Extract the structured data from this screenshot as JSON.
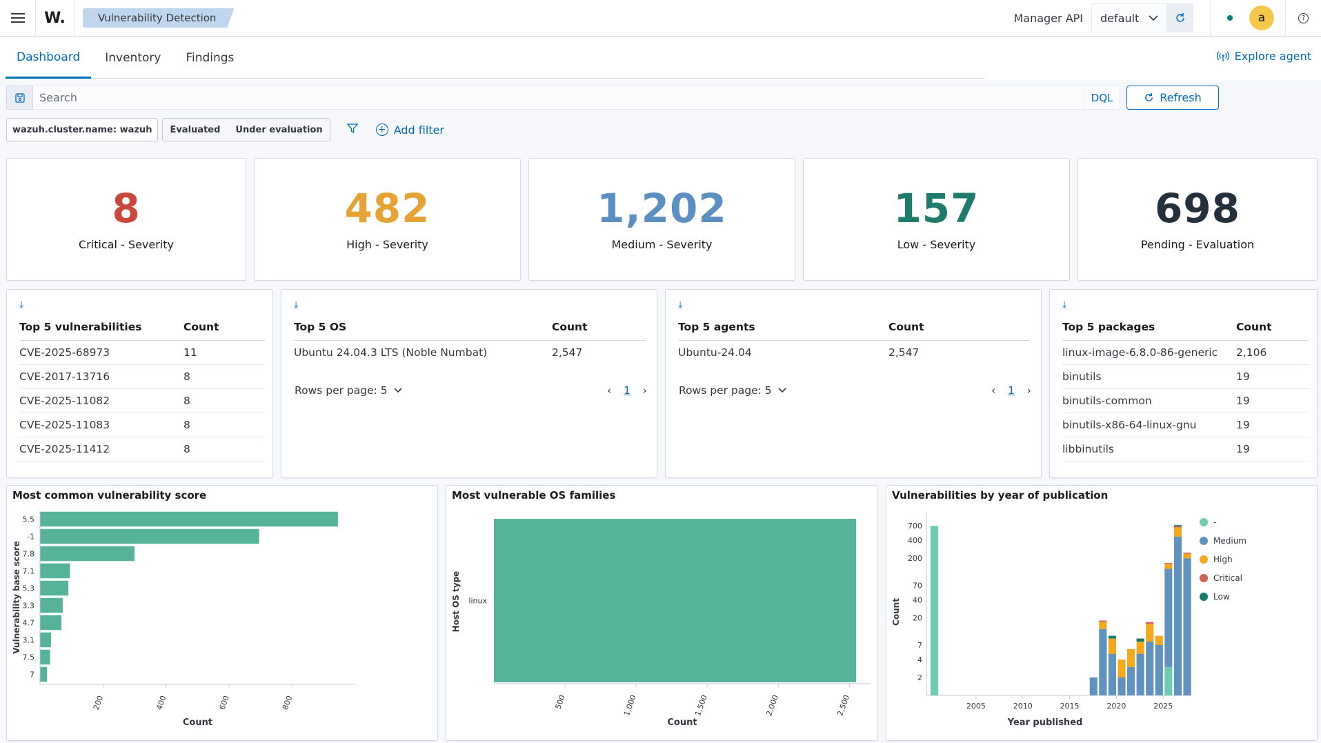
{
  "topbar": {
    "logo": "W.",
    "breadcrumb": "Vulnerability Detection",
    "manager_label": "Manager API",
    "manager_value": "default",
    "avatar_letter": "a",
    "help": "?"
  },
  "tabs": [
    {
      "label": "Dashboard",
      "active": true
    },
    {
      "label": "Inventory",
      "active": false
    },
    {
      "label": "Findings",
      "active": false
    }
  ],
  "explore_agent": "Explore agent",
  "search": {
    "placeholder": "Search",
    "dql": "DQL",
    "refresh": "Refresh"
  },
  "filters": {
    "pill": "wazuh.cluster.name: wazuh",
    "toggle_a": "Evaluated",
    "toggle_b": "Under evaluation",
    "add_filter": "Add filter"
  },
  "metrics": [
    {
      "value": "8",
      "label": "Critical - Severity",
      "color": "#c9473b"
    },
    {
      "value": "482",
      "label": "High - Severity",
      "color": "#e4a334"
    },
    {
      "value": "1,202",
      "label": "Medium - Severity",
      "color": "#5b8ec1"
    },
    {
      "value": "157",
      "label": "Low - Severity",
      "color": "#1f7c6c"
    },
    {
      "value": "698",
      "label": "Pending - Evaluation",
      "color": "#25303d"
    }
  ],
  "top_vulns": {
    "col1": "Top 5 vulnerabilities",
    "col2": "Count",
    "rows": [
      [
        "CVE-2025-68973",
        "11"
      ],
      [
        "CVE-2017-13716",
        "8"
      ],
      [
        "CVE-2025-11082",
        "8"
      ],
      [
        "CVE-2025-11083",
        "8"
      ],
      [
        "CVE-2025-11412",
        "8"
      ]
    ]
  },
  "top_os": {
    "col1": "Top 5 OS",
    "col2": "Count",
    "rows": [
      [
        "Ubuntu 24.04.3 LTS (Noble Numbat)",
        "2,547"
      ]
    ],
    "rows_per_page": "Rows per page: 5",
    "page": "1"
  },
  "top_agents": {
    "col1": "Top 5 agents",
    "col2": "Count",
    "rows": [
      [
        "Ubuntu-24.04",
        "2,547"
      ]
    ],
    "rows_per_page": "Rows per page: 5",
    "page": "1"
  },
  "top_packages": {
    "col1": "Top 5 packages",
    "col2": "Count",
    "rows": [
      [
        "linux-image-6.8.0-86-generic",
        "2,106"
      ],
      [
        "binutils",
        "19"
      ],
      [
        "binutils-common",
        "19"
      ],
      [
        "binutils-x86-64-linux-gnu",
        "19"
      ],
      [
        "libbinutils",
        "19"
      ]
    ]
  },
  "chart_titles": {
    "score": "Most common vulnerability score",
    "os": "Most vulnerable OS families",
    "year": "Vulnerabilities by year of publication"
  },
  "chart_data": [
    {
      "type": "bar",
      "orientation": "horizontal",
      "title": "Most common vulnerability score",
      "categories": [
        "5.5",
        "-1",
        "7.8",
        "7.1",
        "5.3",
        "3.3",
        "4.7",
        "3.1",
        "7.5",
        "7"
      ],
      "values": [
        945,
        695,
        300,
        95,
        90,
        72,
        68,
        35,
        32,
        22
      ],
      "xticks": [
        "200",
        "400",
        "600",
        "800"
      ],
      "xlabel": "Count",
      "ylabel": "Vulnerability base score",
      "color": "#54b399"
    },
    {
      "type": "bar",
      "orientation": "horizontal",
      "title": "Most vulnerable OS families",
      "categories": [
        "linux"
      ],
      "values": [
        2547
      ],
      "xticks": [
        "500",
        "1,000",
        "1,500",
        "2,000",
        "2,500"
      ],
      "xlabel": "Count",
      "ylabel": "Host OS type",
      "color": "#54b399"
    },
    {
      "type": "bar",
      "stacked": true,
      "scale": "log",
      "title": "Vulnerabilities by year of publication",
      "xlabel": "Year published",
      "ylabel": "Count",
      "xticks": [
        "2005",
        "2010",
        "2015",
        "2020",
        "2025"
      ],
      "yticks": [
        "2",
        "4",
        "7",
        "20",
        "40",
        "70",
        "200",
        "400",
        "700"
      ],
      "legend_position": "right",
      "series": [
        {
          "name": "-",
          "color": "#6dccb1"
        },
        {
          "name": "Medium",
          "color": "#6092c0"
        },
        {
          "name": "High",
          "color": "#f4a81b"
        },
        {
          "name": "Critical",
          "color": "#d36052"
        },
        {
          "name": "Low",
          "color": "#107b6d"
        }
      ],
      "bars": [
        {
          "year": 2000,
          "-": 700
        },
        {
          "year": 2017,
          "Medium": 2
        },
        {
          "year": 2018,
          "Medium": 13,
          "High": 4,
          "Critical": 1
        },
        {
          "year": 2019,
          "Medium": 5,
          "High": 4,
          "Low": 1
        },
        {
          "year": 2020,
          "Medium": 2,
          "High": 2
        },
        {
          "year": 2021,
          "Medium": 3,
          "High": 3
        },
        {
          "year": 2022,
          "Medium": 5,
          "High": 3,
          "Low": 1
        },
        {
          "year": 2023,
          "Medium": 8,
          "High": 8,
          "Critical": 1
        },
        {
          "year": 2024,
          "Medium": 7,
          "High": 3
        },
        {
          "year": 2025,
          "-": 3,
          "Medium": 130,
          "High": 30,
          "Critical": 3
        },
        {
          "year": 2026,
          "Medium": 460,
          "High": 200,
          "Critical": 30,
          "Low": 30
        },
        {
          "year": 2027,
          "Medium": 200,
          "High": 40,
          "Critical": 8
        }
      ]
    }
  ]
}
